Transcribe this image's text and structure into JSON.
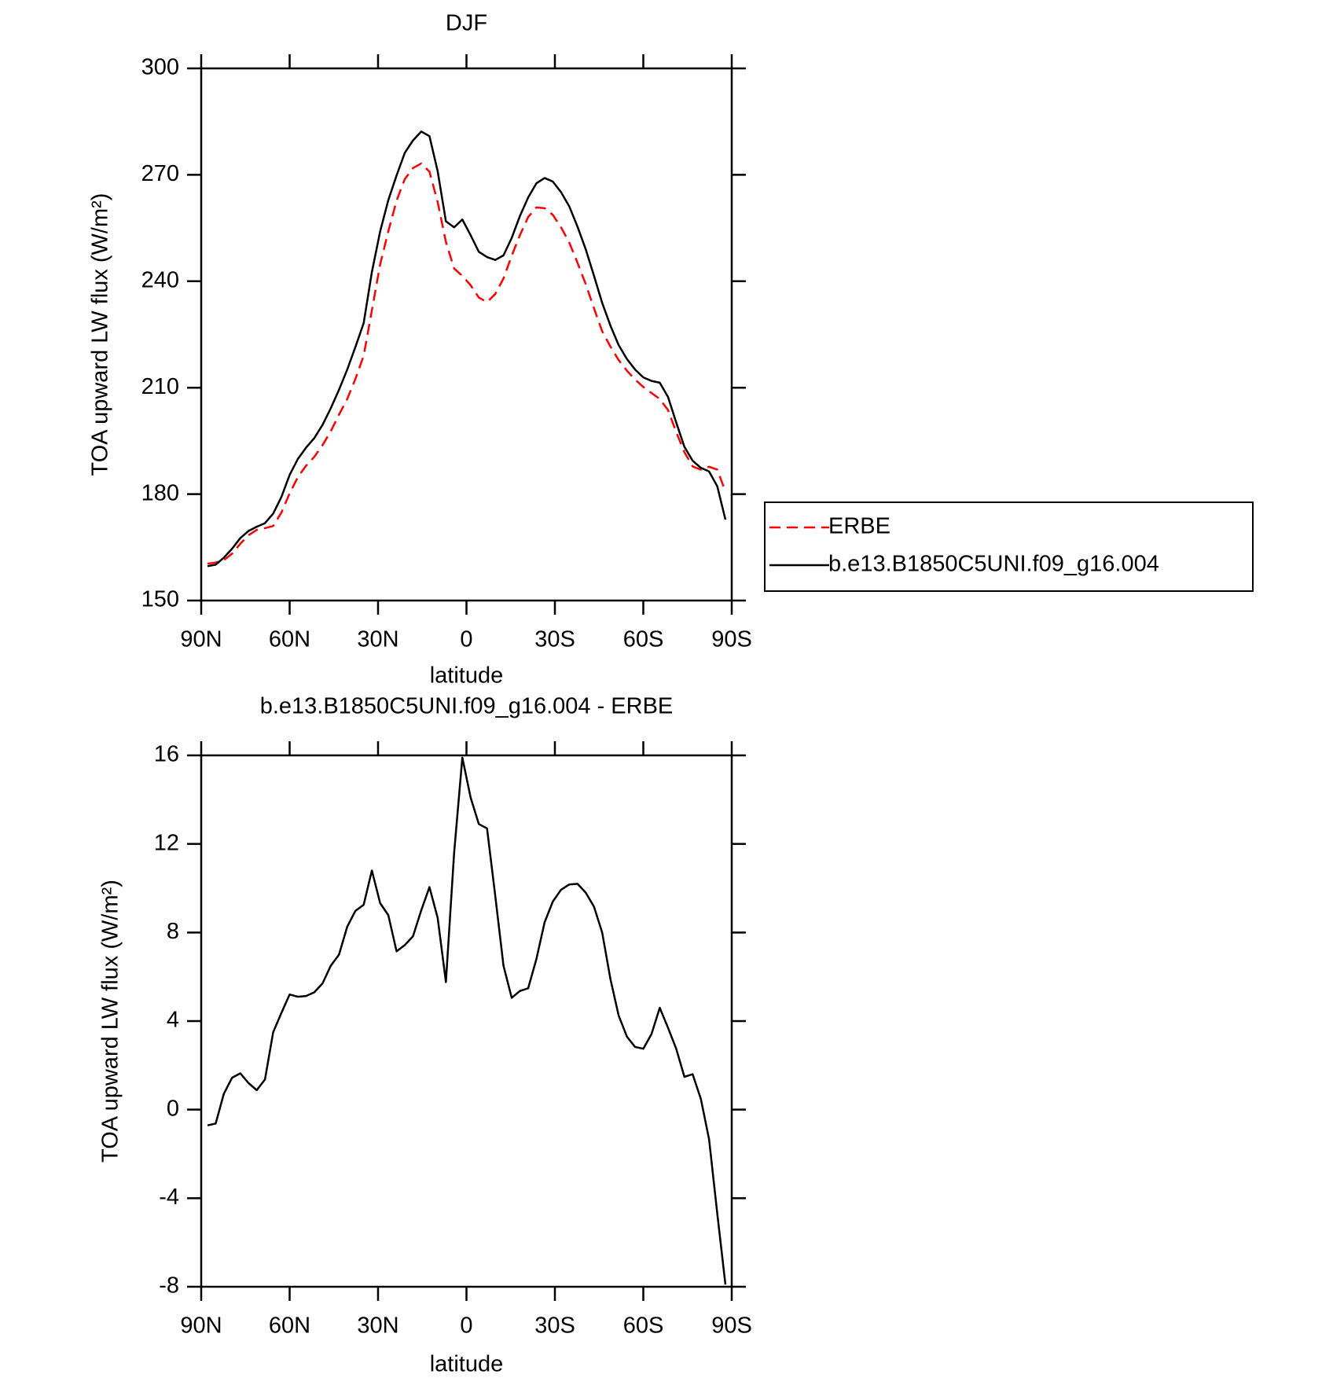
{
  "chart_data": [
    {
      "type": "line",
      "title": "DJF",
      "xlabel": "latitude",
      "ylabel": "TOA upward LW flux (W/m²)",
      "x": [
        87.86,
        85.1,
        82.31,
        79.53,
        76.74,
        73.95,
        71.16,
        68.37,
        65.58,
        62.79,
        60.0,
        57.21,
        54.42,
        51.63,
        48.84,
        46.04,
        43.25,
        40.46,
        37.67,
        34.88,
        32.09,
        29.3,
        26.51,
        23.72,
        20.93,
        18.14,
        15.35,
        12.56,
        9.77,
        6.98,
        4.19,
        1.4,
        -1.4,
        -4.19,
        -6.98,
        -9.77,
        -12.56,
        -15.35,
        -18.14,
        -20.93,
        -23.72,
        -26.51,
        -29.3,
        -32.09,
        -34.88,
        -37.67,
        -40.46,
        -43.25,
        -46.04,
        -48.84,
        -51.63,
        -54.42,
        -57.21,
        -60.0,
        -62.79,
        -65.58,
        -68.37,
        -71.16,
        -73.95,
        -76.74,
        -79.53,
        -82.31,
        -85.1,
        -87.86
      ],
      "series": [
        {
          "name": "ERBE",
          "color": "#ff0000",
          "dashed": true,
          "values": [
            160.4,
            160.7,
            161.4,
            163.2,
            166.0,
            168.4,
            169.9,
            170.4,
            171.0,
            174.8,
            180.2,
            184.8,
            188.0,
            190.5,
            193.8,
            197.7,
            202.4,
            206.8,
            212.5,
            219.0,
            231.8,
            244.7,
            254.1,
            262.7,
            268.8,
            271.9,
            273.2,
            270.9,
            262.3,
            251.1,
            243.6,
            241.5,
            238.9,
            235.4,
            234.1,
            236.4,
            240.8,
            247.2,
            253.0,
            258.1,
            260.8,
            260.6,
            258.7,
            255.2,
            250.9,
            245.2,
            239.2,
            232.4,
            225.9,
            221.6,
            217.8,
            214.8,
            212.3,
            210.2,
            208.5,
            206.8,
            203.7,
            197.5,
            191.8,
            187.8,
            186.9,
            187.7,
            186.9,
            180.7
          ]
        },
        {
          "name": "b.e13.B1850C5UNI.f09_g16.004",
          "color": "#000000",
          "dashed": false,
          "values": [
            159.7,
            160.1,
            162.1,
            164.6,
            167.6,
            169.6,
            170.8,
            171.8,
            174.5,
            179.2,
            185.4,
            189.9,
            193.1,
            195.8,
            199.5,
            204.2,
            209.4,
            215.1,
            221.5,
            228.2,
            242.6,
            254.0,
            262.9,
            269.8,
            276.2,
            279.7,
            282.2,
            280.9,
            271.0,
            256.9,
            255.2,
            257.4,
            253.0,
            248.3,
            246.8,
            246.0,
            247.3,
            252.2,
            258.4,
            263.6,
            267.6,
            269.1,
            268.1,
            265.1,
            261.1,
            255.4,
            249.0,
            241.6,
            233.9,
            227.5,
            222.0,
            218.1,
            215.1,
            212.9,
            211.9,
            211.4,
            207.4,
            200.2,
            193.3,
            189.4,
            187.4,
            186.4,
            182.2,
            172.8
          ]
        }
      ],
      "xlim": [
        90,
        -90
      ],
      "xticks": [
        {
          "value": 90,
          "label": "90N"
        },
        {
          "value": 60,
          "label": "60N"
        },
        {
          "value": 30,
          "label": "30N"
        },
        0,
        {
          "value": -30,
          "label": "30S"
        },
        {
          "value": -60,
          "label": "60S"
        },
        {
          "value": -90,
          "label": "90S"
        }
      ],
      "ylim": [
        150,
        300
      ],
      "yticks": [
        150,
        180,
        210,
        240,
        270,
        300
      ],
      "legend": "right"
    },
    {
      "type": "line",
      "title": "b.e13.B1850C5UNI.f09_g16.004 - ERBE",
      "xlabel": "latitude",
      "ylabel": "TOA upward LW flux (W/m²)",
      "x": [
        87.86,
        85.1,
        82.31,
        79.53,
        76.74,
        73.95,
        71.16,
        68.37,
        65.58,
        62.79,
        60.0,
        57.21,
        54.42,
        51.63,
        48.84,
        46.04,
        43.25,
        40.46,
        37.67,
        34.88,
        32.09,
        29.3,
        26.51,
        23.72,
        20.93,
        18.14,
        15.35,
        12.56,
        9.77,
        6.98,
        4.19,
        1.4,
        -1.4,
        -4.19,
        -6.98,
        -9.77,
        -12.56,
        -15.35,
        -18.14,
        -20.93,
        -23.72,
        -26.51,
        -29.3,
        -32.09,
        -34.88,
        -37.67,
        -40.46,
        -43.25,
        -46.04,
        -48.84,
        -51.63,
        -54.42,
        -57.21,
        -60.0,
        -62.79,
        -65.58,
        -68.37,
        -71.16,
        -73.95,
        -76.74,
        -79.53,
        -82.31,
        -85.1,
        -87.86
      ],
      "values": [
        -0.71,
        -0.63,
        0.72,
        1.44,
        1.64,
        1.2,
        0.88,
        1.36,
        3.5,
        4.37,
        5.2,
        5.1,
        5.13,
        5.3,
        5.7,
        6.5,
        7.0,
        8.26,
        8.98,
        9.25,
        10.8,
        9.33,
        8.78,
        7.15,
        7.43,
        7.83,
        9.0,
        10.05,
        8.66,
        5.76,
        11.6,
        15.9,
        14.1,
        12.9,
        12.7,
        9.65,
        6.5,
        5.05,
        5.36,
        5.48,
        6.8,
        8.46,
        9.4,
        9.93,
        10.17,
        10.2,
        9.8,
        9.17,
        8.0,
        5.9,
        4.25,
        3.3,
        2.83,
        2.75,
        3.42,
        4.6,
        3.7,
        2.75,
        1.48,
        1.6,
        0.48,
        -1.34,
        -4.7,
        -7.9
      ],
      "color": "#000000",
      "xlim": [
        90,
        -90
      ],
      "xticks": [
        {
          "value": 90,
          "label": "90N"
        },
        {
          "value": 60,
          "label": "60N"
        },
        {
          "value": 30,
          "label": "30N"
        },
        0,
        {
          "value": -30,
          "label": "30S"
        },
        {
          "value": -60,
          "label": "60S"
        },
        {
          "value": -90,
          "label": "90S"
        }
      ],
      "ylim": [
        -8,
        16
      ],
      "yticks": [
        -8,
        -4,
        0,
        4,
        8,
        12,
        16
      ]
    }
  ]
}
